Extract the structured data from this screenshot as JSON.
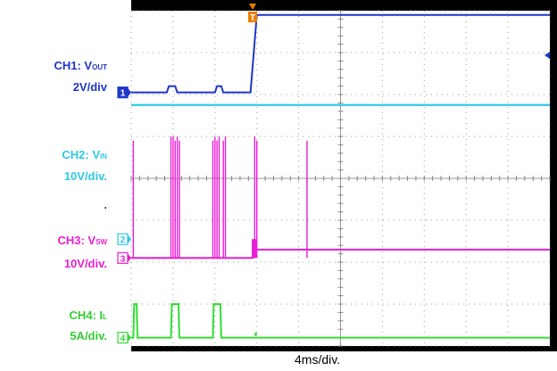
{
  "chart_data": {
    "type": "line",
    "xlabel": "4ms/div.",
    "grid": true,
    "divisions": {
      "x": 10,
      "y": 8
    },
    "xlim": [
      0,
      10
    ],
    "ylim": [
      0,
      8
    ],
    "trigger_marker": {
      "label": "T",
      "x": 2.9,
      "color": "#f07c00"
    },
    "series": [
      {
        "name": "CH1",
        "name_main": "CH1: V",
        "name_sub": "OUT",
        "scale": "2V/div",
        "color": "#1f36c8",
        "marker": "1",
        "offset_div": 6.05,
        "x": [
          0,
          0.5,
          0.6,
          0.75,
          0.9,
          1.0,
          1.7,
          1.75,
          2.5,
          2.55,
          3.15,
          3.25,
          5.0,
          5.1,
          6.9,
          10
        ],
        "y": [
          6.05,
          6.05,
          6.05,
          6.05,
          6.1,
          6.05,
          6.05,
          6.07,
          6.07,
          6.05,
          6.05,
          6.05,
          6.05,
          6.05,
          6.05,
          6.05
        ],
        "raw_x": [
          0,
          0.85,
          0.9,
          1.05,
          1.1,
          2.0,
          2.05,
          2.15,
          2.2,
          2.85,
          3.0,
          10
        ],
        "raw_y": [
          6.05,
          6.05,
          6.2,
          6.2,
          6.05,
          6.05,
          6.2,
          6.2,
          6.05,
          6.05,
          7.9,
          7.9
        ]
      },
      {
        "name": "CH2",
        "name_main": "CH2: V",
        "name_sub": "IN",
        "scale": "10V/div.",
        "color": "#2ec8e6",
        "marker": "2",
        "x": [
          0,
          10
        ],
        "y": [
          5.75,
          5.75
        ]
      },
      {
        "name": "CH3",
        "name_main": "CH3: V",
        "name_sub": "SW",
        "scale": "10V/div.",
        "color": "#e81ed2",
        "marker": "3",
        "x": [
          0,
          2.85,
          2.9,
          3.0,
          10
        ],
        "y": [
          2.1,
          2.1,
          2.1,
          2.3,
          2.3
        ],
        "spikes_x": [
          0.05,
          0.95,
          1.0,
          1.05,
          1.1,
          1.15,
          1.95,
          2.0,
          2.05,
          2.1,
          2.2,
          2.25,
          2.95,
          3.0,
          4.2
        ],
        "spikes_top": [
          4.9,
          5.0,
          5.0,
          4.9,
          5.0,
          4.9,
          4.9,
          5.0,
          4.9,
          5.0,
          4.9,
          5.0,
          5.0,
          4.9,
          4.9
        ]
      },
      {
        "name": "CH4",
        "name_main": "CH4: I",
        "name_sub": "L",
        "scale": "5A/div.",
        "color": "#33dd33",
        "marker": "4",
        "x": [
          0,
          0.05,
          0.1,
          0.85,
          0.9,
          1.1,
          1.15,
          1.85,
          1.9,
          2.1,
          2.15,
          10
        ],
        "y": [
          0.2,
          0.2,
          1.0,
          1.0,
          0.2,
          0.2,
          1.0,
          1.0,
          0.2,
          0.2,
          1.0,
          0.2
        ],
        "pulses": [
          [
            0.05,
            0.15
          ],
          [
            0.95,
            1.15
          ],
          [
            1.95,
            2.15
          ]
        ]
      }
    ],
    "left_labels": {
      "dot": "."
    }
  }
}
